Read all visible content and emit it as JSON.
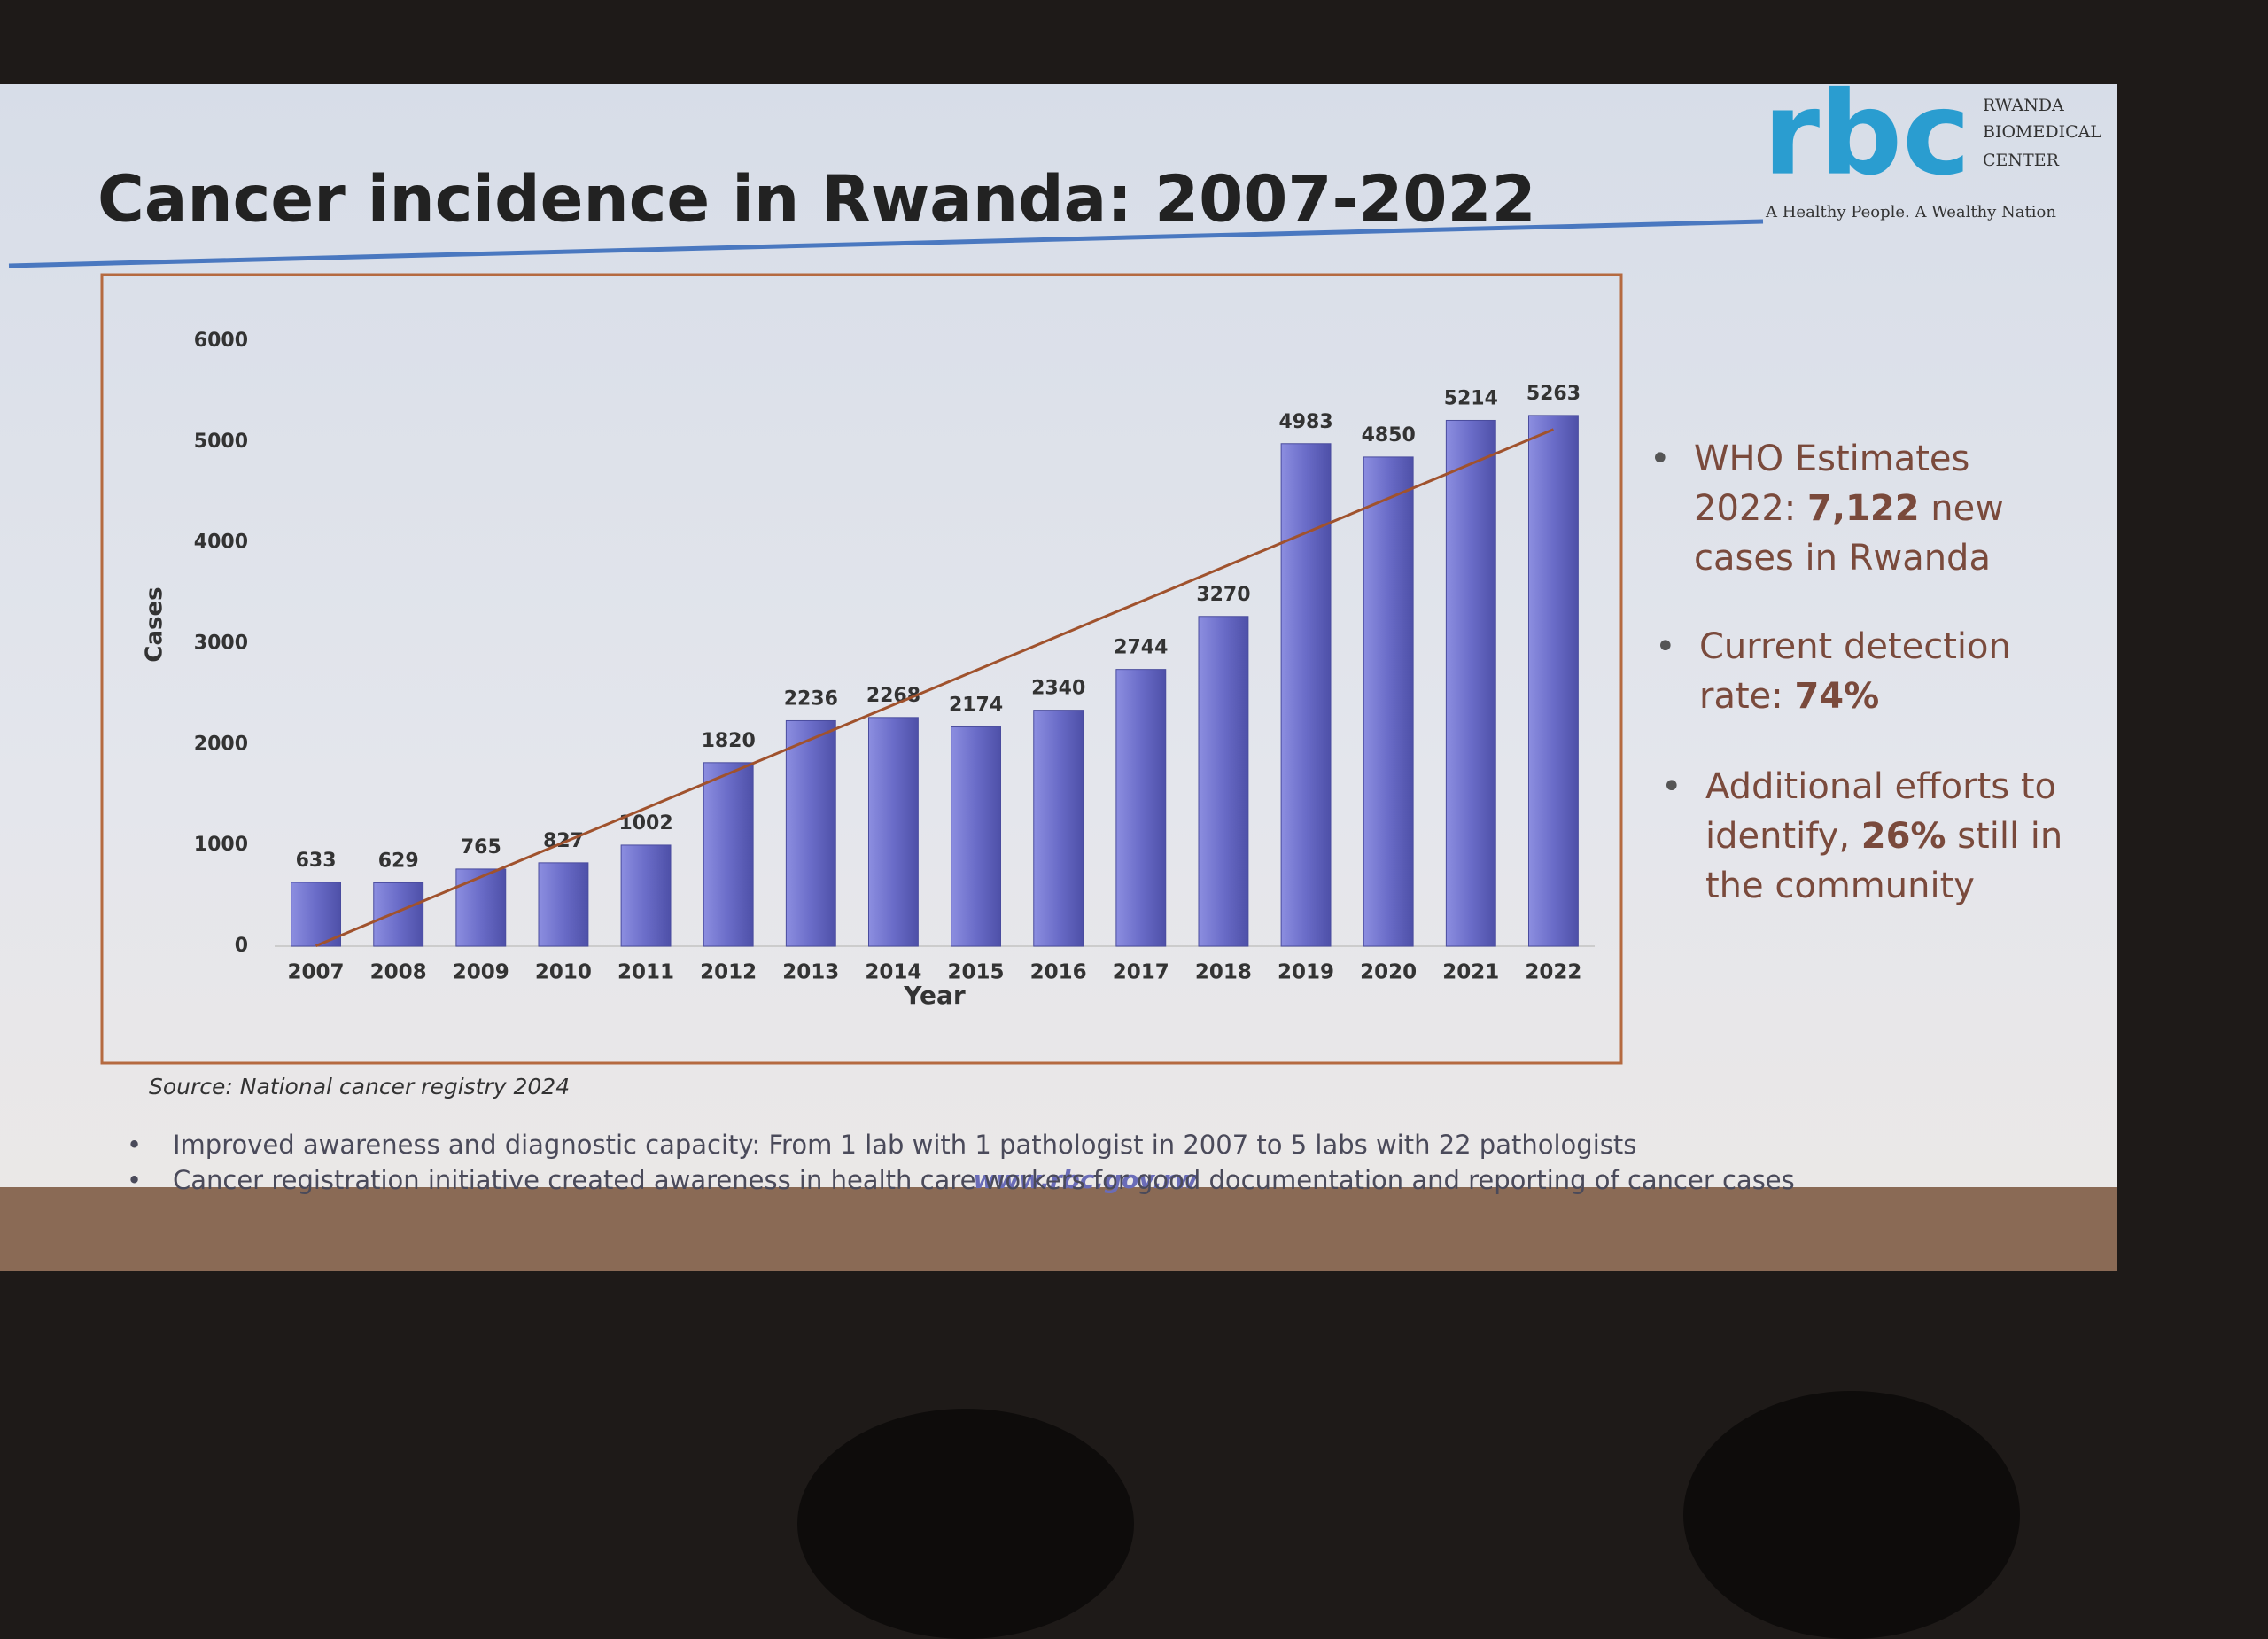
{
  "chart_data": {
    "type": "bar",
    "title": "Cancer incidence in Rwanda: 2007-2022",
    "categories": [
      "2007",
      "2008",
      "2009",
      "2010",
      "2011",
      "2012",
      "2013",
      "2014",
      "2015",
      "2016",
      "2017",
      "2018",
      "2019",
      "2020",
      "2021",
      "2022"
    ],
    "values": [
      633,
      629,
      765,
      827,
      1002,
      1820,
      2236,
      2268,
      2174,
      2340,
      2744,
      3270,
      4983,
      4850,
      5214,
      5263
    ],
    "color": "#6a6cc8",
    "ylabel": "Cases",
    "xlabel": "Year",
    "ylim": [
      0,
      6000
    ],
    "yticks": [
      0,
      1000,
      2000,
      3000,
      4000,
      5000,
      6000
    ],
    "trendline": "linear",
    "trendline_color": "#a0522d",
    "source": "Source: National cancer registry 2024"
  },
  "logo": {
    "mark": "rbc",
    "name_lines": [
      "RWANDA",
      "BIOMEDICAL",
      "CENTER"
    ],
    "tagline": "A Healthy People. A Wealthy Nation"
  },
  "side_bullets": [
    {
      "text": "WHO Estimates 2022:",
      "bold": "7,122",
      "rest": "new cases in Rwanda"
    },
    {
      "text": "Current detection rate:",
      "bold": "74%"
    },
    {
      "text": "Additional efforts to identify,",
      "bold": "26%",
      "rest": "still in the community"
    }
  ],
  "bottom_bullets": [
    "Improved awareness and diagnostic capacity: From 1 lab with 1 pathologist in 2007 to 5 labs with 22 pathologists",
    "Cancer registration initiative created awareness in health care workers for good documentation and reporting of cancer cases"
  ],
  "website": "www.rbc.gov.rw"
}
